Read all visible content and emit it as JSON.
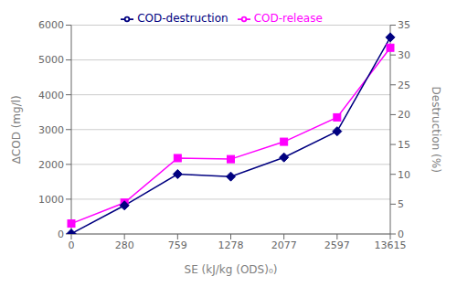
{
  "chart_data": {
    "type": "line",
    "categories": [
      "0",
      "280",
      "759",
      "1278",
      "2077",
      "2597",
      "13615"
    ],
    "series": [
      {
        "name": "COD-release",
        "color": "#FF00FF",
        "marker": "square",
        "values": [
          300,
          900,
          2180,
          2150,
          2650,
          3350,
          5350
        ]
      },
      {
        "name": "COD-destruction",
        "color": "#000080",
        "marker": "diamond",
        "values": [
          10,
          820,
          1720,
          1650,
          2200,
          2950,
          5650
        ]
      }
    ],
    "xlabel": "SE (kJ/kg (ODS)₀)",
    "ylabel": "∆COD (mg/l)",
    "y2label": "Destruction (%)",
    "ylim": [
      0,
      6000
    ],
    "yticks": [
      0,
      1000,
      2000,
      3000,
      4000,
      5000,
      6000
    ],
    "y2lim": [
      0,
      35
    ],
    "y2ticks": [
      0,
      5,
      10,
      15,
      20,
      25,
      30,
      35
    ],
    "grid": true,
    "legend": "upper center"
  }
}
